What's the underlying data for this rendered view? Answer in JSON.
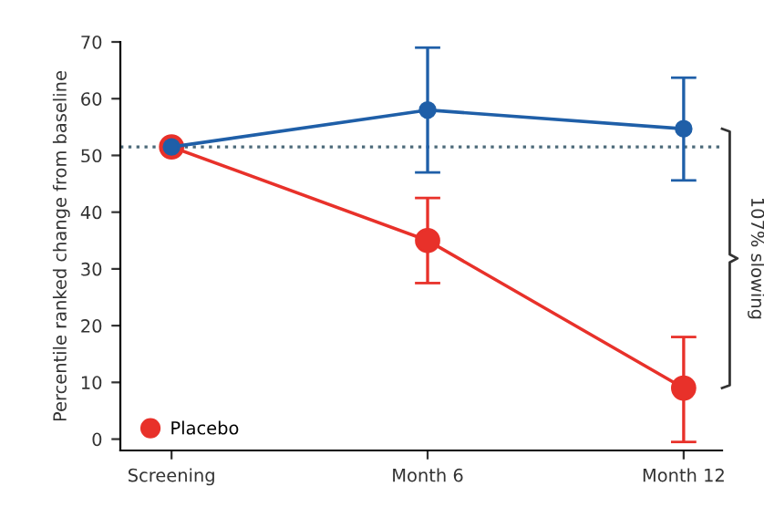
{
  "chart_data": {
    "type": "line",
    "ylabel": "Percentile ranked change from baseline",
    "categories": [
      "Screening",
      "Month 6",
      "Month 12"
    ],
    "series": [
      {
        "name": "Placebo",
        "color": "#e8312a",
        "values": [
          51.5,
          35,
          9
        ],
        "errors": [
          null,
          [
            27.5,
            42.5
          ],
          [
            -0.5,
            18
          ]
        ]
      },
      {
        "color": "#1f5fa8",
        "values": [
          51.5,
          58,
          54.7
        ],
        "errors": [
          null,
          [
            47,
            69
          ],
          [
            45.6,
            63.7
          ]
        ]
      }
    ],
    "ylim": [
      -2,
      70
    ],
    "yticks": [
      0,
      10,
      20,
      30,
      40,
      50,
      60,
      70
    ],
    "marker": "circle",
    "grid": false,
    "legend": "bottom left",
    "ref_lines": [
      {
        "axis": "y",
        "value": 51.5,
        "color": "#4d6a7a",
        "line_style": "dotted"
      }
    ],
    "annotations": [
      "107% slowing"
    ]
  }
}
